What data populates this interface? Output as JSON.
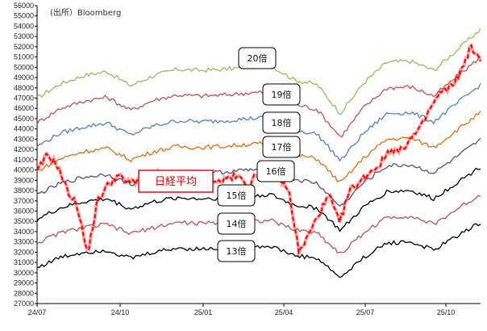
{
  "source": "(出所）Bloomberg",
  "chart_data": {
    "type": "line",
    "x_ticks": [
      "24/07",
      "24/10",
      "25/01",
      "25/04",
      "25/07",
      "25/10"
    ],
    "y_ticks": [
      27000,
      28000,
      29000,
      30000,
      31000,
      32000,
      33000,
      34000,
      35000,
      36000,
      37000,
      38000,
      39000,
      40000,
      41000,
      42000,
      43000,
      44000,
      45000,
      46000,
      47000,
      48000,
      49000,
      50000,
      51000,
      52000,
      53000,
      54000,
      55000,
      56000
    ],
    "ylim": [
      27000,
      56000
    ],
    "grid": false,
    "multiples": [
      {
        "name": "20倍",
        "color": "#9bbb59",
        "values": [
          47000,
          48400,
          49200,
          49600,
          48200,
          49200,
          49800,
          49700,
          49800,
          50000,
          50200,
          48800,
          48300,
          45500,
          48500,
          50500,
          50600,
          49700,
          51700,
          53700
        ]
      },
      {
        "name": "19倍",
        "color": "#c0504d",
        "values": [
          44600,
          46000,
          46700,
          47100,
          45800,
          46800,
          47300,
          47200,
          47300,
          47500,
          47600,
          46400,
          45900,
          43200,
          46100,
          48000,
          48100,
          47200,
          49100,
          51000
        ]
      },
      {
        "name": "18倍",
        "color": "#4f81bd",
        "values": [
          42300,
          43600,
          44200,
          44600,
          43400,
          44300,
          44800,
          44700,
          44800,
          45000,
          45100,
          43900,
          43500,
          40900,
          43600,
          45500,
          45600,
          44700,
          46500,
          48300
        ]
      },
      {
        "name": "17倍",
        "color": "#e46c0a",
        "values": [
          39900,
          41100,
          41800,
          42100,
          41000,
          41800,
          42300,
          42200,
          42300,
          42500,
          42600,
          41500,
          41100,
          38700,
          41200,
          43000,
          43100,
          42200,
          43900,
          45600
        ]
      },
      {
        "name": "16倍",
        "color": "#604a7b",
        "values": [
          37600,
          38700,
          39300,
          39600,
          38600,
          39400,
          39800,
          39700,
          39800,
          40000,
          40100,
          39100,
          38700,
          36400,
          38800,
          40400,
          40500,
          39700,
          41300,
          42900
        ]
      },
      {
        "name": "15倍",
        "color": "#000000",
        "values": [
          35200,
          36300,
          36900,
          37200,
          36200,
          36900,
          37300,
          37200,
          37300,
          37500,
          37600,
          36600,
          36300,
          34100,
          36400,
          37900,
          38000,
          37200,
          38800,
          40300
        ]
      },
      {
        "name": "14倍",
        "color": "#c0504d",
        "values": [
          32900,
          33900,
          34400,
          34700,
          33800,
          34400,
          34900,
          34800,
          34900,
          35000,
          35100,
          34200,
          33900,
          31800,
          33900,
          35400,
          35500,
          34700,
          36200,
          37600
        ]
      },
      {
        "name": "13倍",
        "color": "#000000",
        "values": [
          30500,
          31500,
          32000,
          32200,
          31400,
          32000,
          32400,
          32300,
          32400,
          32500,
          32600,
          31700,
          31400,
          29500,
          31500,
          32900,
          33000,
          32200,
          33600,
          34900
        ]
      }
    ],
    "nikkei": {
      "name": "日経平均",
      "color": "#ff0000",
      "values": [
        39800,
        41500,
        40500,
        38000,
        36500,
        31800,
        37000,
        38500,
        39500,
        38800,
        39000,
        39600,
        39600,
        39500,
        38800,
        39200,
        39400,
        39500,
        38800,
        39300,
        39300,
        38500,
        39800,
        39600,
        39400,
        37800,
        31900,
        33800,
        35800,
        37500,
        34800,
        38000,
        38800,
        39800,
        40500,
        42000,
        41800,
        43000,
        44000,
        46000,
        47500,
        48000,
        49500,
        52000,
        50500
      ]
    }
  }
}
